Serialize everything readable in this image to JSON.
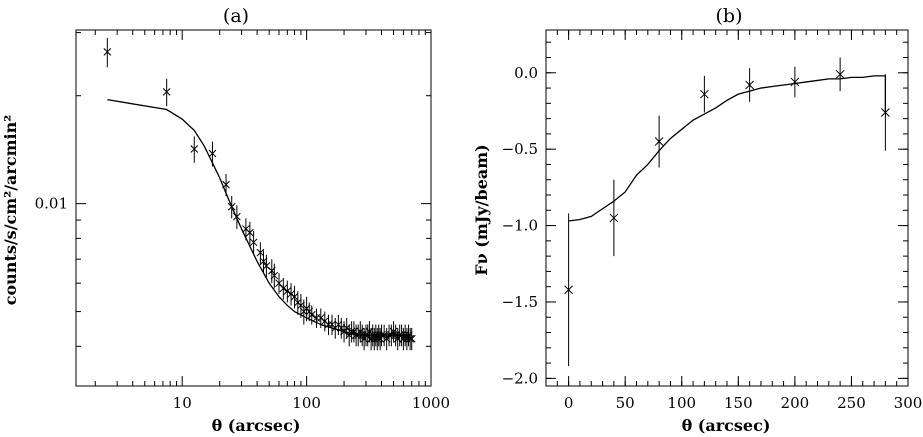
{
  "chart_data": [
    {
      "panel": "a",
      "title": "(a)",
      "type": "scatter",
      "xlabel": "θ (arcsec)",
      "ylabel": "counts/s/cm²/arcmin²",
      "xscale": "log",
      "yscale": "log",
      "xlim": [
        1.4,
        1000
      ],
      "ylim": [
        0.0031,
        0.0305
      ],
      "xticks": [
        10,
        100,
        1000
      ],
      "xtick_labels": [
        "10",
        "100",
        "1000"
      ],
      "yticks": [
        0.01
      ],
      "ytick_labels": [
        "0.01"
      ],
      "grid": false,
      "points": {
        "x": [
          2.5,
          7.5,
          12.5,
          17.5,
          22.5,
          25,
          27.5,
          32.5,
          35,
          37.5,
          42.5,
          45,
          47.5,
          52.5,
          55,
          60,
          65,
          70,
          75,
          80,
          85,
          90,
          95,
          100,
          105,
          110,
          120,
          130,
          140,
          150,
          160,
          170,
          180,
          190,
          200,
          210,
          220,
          230,
          240,
          250,
          260,
          270,
          280,
          290,
          300,
          310,
          320,
          330,
          340,
          350,
          360,
          370,
          380,
          390,
          400,
          420,
          440,
          460,
          480,
          500,
          520,
          540,
          560,
          580,
          600,
          620,
          640,
          660,
          680,
          700
        ],
        "y": [
          0.0265,
          0.0205,
          0.0142,
          0.0138,
          0.0113,
          0.0098,
          0.0092,
          0.0085,
          0.0083,
          0.0078,
          0.0073,
          0.0069,
          0.0067,
          0.0065,
          0.0063,
          0.006,
          0.0058,
          0.0057,
          0.0056,
          0.0055,
          0.0053,
          0.0052,
          0.005,
          0.0051,
          0.005,
          0.0049,
          0.0048,
          0.0048,
          0.0047,
          0.0046,
          0.0046,
          0.0045,
          0.0046,
          0.0045,
          0.0044,
          0.0045,
          0.0043,
          0.0044,
          0.0044,
          0.0043,
          0.0043,
          0.0044,
          0.0043,
          0.0042,
          0.0043,
          0.0043,
          0.0044,
          0.0042,
          0.0043,
          0.0042,
          0.0043,
          0.0042,
          0.0043,
          0.0042,
          0.0043,
          0.0043,
          0.0042,
          0.0043,
          0.0043,
          0.0044,
          0.0043,
          0.0042,
          0.0043,
          0.0043,
          0.0042,
          0.0043,
          0.0042,
          0.0043,
          0.0042,
          0.0042
        ],
        "yerr": [
          0.0025,
          0.0018,
          0.0012,
          0.0011,
          0.0008,
          0.0007,
          0.0007,
          0.0006,
          0.0006,
          0.0006,
          0.0005,
          0.0005,
          0.0005,
          0.0005,
          0.0005,
          0.0004,
          0.0004,
          0.0004,
          0.0004,
          0.0004,
          0.0004,
          0.0004,
          0.0004,
          0.0004,
          0.0003,
          0.0003,
          0.0003,
          0.0003,
          0.0003,
          0.0003,
          0.0003,
          0.0003,
          0.0003,
          0.0003,
          0.0003,
          0.0003,
          0.0003,
          0.0003,
          0.0003,
          0.0003,
          0.0003,
          0.0003,
          0.0003,
          0.0003,
          0.0003,
          0.0003,
          0.0003,
          0.0003,
          0.0003,
          0.0003,
          0.0003,
          0.0003,
          0.0003,
          0.0003,
          0.0003,
          0.0003,
          0.0003,
          0.0003,
          0.0003,
          0.0003,
          0.0003,
          0.0003,
          0.0003,
          0.0003,
          0.0003,
          0.0003,
          0.0003,
          0.0003,
          0.0003,
          0.0003
        ]
      },
      "model": {
        "x": [
          2.5,
          7.5,
          10,
          12.5,
          15,
          17.5,
          20,
          25,
          30,
          35,
          40,
          50,
          60,
          70,
          80,
          100,
          130,
          160,
          200,
          250,
          300,
          400,
          500,
          600,
          700
        ],
        "y": [
          0.0195,
          0.0183,
          0.0172,
          0.016,
          0.0145,
          0.013,
          0.0118,
          0.0098,
          0.0085,
          0.0076,
          0.0069,
          0.006,
          0.0055,
          0.0052,
          0.005,
          0.0048,
          0.0046,
          0.0045,
          0.0044,
          0.0043,
          0.0043,
          0.0043,
          0.0043,
          0.0043,
          0.0043
        ]
      }
    },
    {
      "panel": "b",
      "title": "(b)",
      "type": "line",
      "xlabel": "θ (arcsec)",
      "ylabel": "Fν (mJy/beam)",
      "xlim": [
        -20,
        300
      ],
      "ylim": [
        -2.05,
        0.28
      ],
      "xticks": [
        0,
        50,
        100,
        150,
        200,
        250,
        300
      ],
      "xtick_labels": [
        "0",
        "50",
        "100",
        "150",
        "200",
        "250",
        "300"
      ],
      "yticks": [
        -2.0,
        -1.5,
        -1.0,
        -0.5,
        0.0
      ],
      "ytick_labels": [
        "−2.0",
        "−1.5",
        "−1.0",
        "−0.5",
        "0.0"
      ],
      "grid": false,
      "points": {
        "x": [
          0,
          40,
          80,
          120,
          160,
          200,
          240,
          280
        ],
        "y": [
          -1.42,
          -0.95,
          -0.45,
          -0.14,
          -0.08,
          -0.06,
          -0.01,
          -0.26
        ],
        "yerr": [
          0.5,
          0.25,
          0.17,
          0.12,
          0.11,
          0.1,
          0.11,
          0.25
        ]
      },
      "model": {
        "x": [
          0,
          10,
          20,
          30,
          40,
          50,
          60,
          70,
          80,
          90,
          100,
          110,
          120,
          130,
          140,
          150,
          160,
          170,
          180,
          190,
          200,
          210,
          220,
          230,
          240,
          250,
          260,
          270,
          280
        ],
        "y": [
          -0.97,
          -0.96,
          -0.94,
          -0.89,
          -0.84,
          -0.78,
          -0.67,
          -0.6,
          -0.51,
          -0.43,
          -0.37,
          -0.31,
          -0.27,
          -0.23,
          -0.18,
          -0.14,
          -0.12,
          -0.1,
          -0.09,
          -0.08,
          -0.07,
          -0.06,
          -0.05,
          -0.04,
          -0.04,
          -0.03,
          -0.03,
          -0.02,
          -0.02
        ]
      }
    }
  ]
}
